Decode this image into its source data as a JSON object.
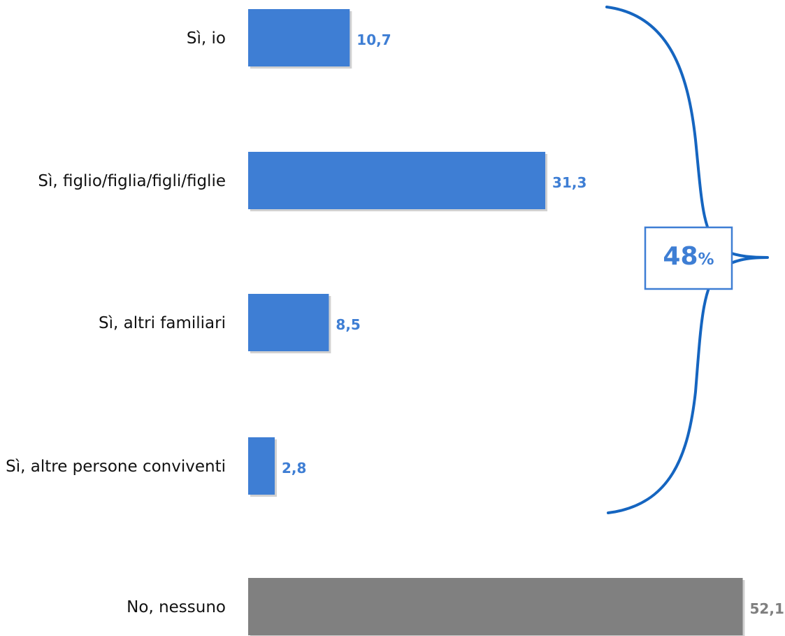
{
  "chart_data": {
    "type": "bar",
    "orientation": "horizontal",
    "categories": [
      "Sì, io",
      "Sì, figlio/figlia/figli/figlie",
      "Sì, altri familiari",
      "Sì, altre persone conviventi",
      "No, nessuno"
    ],
    "values": [
      10.7,
      31.3,
      8.5,
      2.8,
      52.1
    ],
    "value_labels": [
      "10,7",
      "31,3",
      "8,5",
      "2,8",
      "52,1"
    ],
    "xlim": [
      0,
      55
    ],
    "grid": false,
    "legend": "none",
    "group_summary": {
      "value": "48",
      "unit": "%",
      "covers": [
        0,
        1,
        2,
        3
      ]
    }
  },
  "colors": {
    "yes_bar": "#3e7ed4",
    "no_bar": "#808080",
    "yes_label": "#3e7ed4",
    "no_label": "#7f7f7f",
    "brace": "#1565c0",
    "summary_text": "#3e7ed4"
  }
}
